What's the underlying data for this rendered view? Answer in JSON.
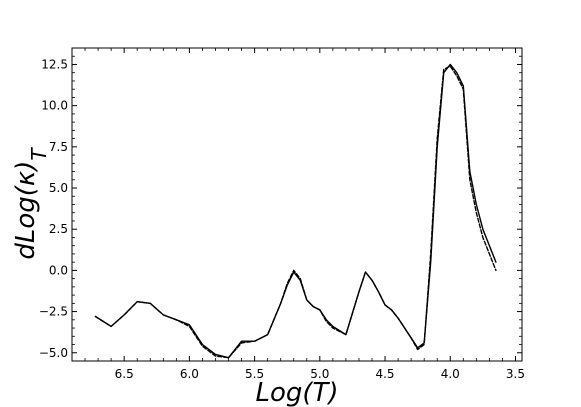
{
  "chart_data": {
    "type": "line",
    "title": "",
    "xlabel": "Log(T)",
    "ylabel": "dLog(κ)_T",
    "xlim": [
      6.9,
      3.45
    ],
    "ylim": [
      -5.5,
      13.5
    ],
    "x_inverted": true,
    "grid": false,
    "x_ticks": [
      6.5,
      6.0,
      5.5,
      5.0,
      4.5,
      4.0,
      3.5
    ],
    "x_tick_labels": [
      "6.5",
      "6.0",
      "5.5",
      "5.0",
      "4.5",
      "4.0",
      "3.5"
    ],
    "y_ticks": [
      -5.0,
      -2.5,
      0.0,
      2.5,
      5.0,
      7.5,
      10.0,
      12.5
    ],
    "y_tick_labels": [
      "−5.0",
      "−2.5",
      "0.0",
      "2.5",
      "5.0",
      "7.5",
      "10.0",
      "12.5"
    ],
    "series": [
      {
        "style": "solid",
        "color": "#000000",
        "x": [
          6.72,
          6.6,
          6.5,
          6.4,
          6.3,
          6.2,
          6.1,
          6.0,
          5.9,
          5.8,
          5.7,
          5.6,
          5.5,
          5.4,
          5.3,
          5.25,
          5.2,
          5.15,
          5.1,
          5.05,
          5.0,
          4.95,
          4.9,
          4.8,
          4.75,
          4.7,
          4.65,
          4.6,
          4.55,
          4.5,
          4.45,
          4.4,
          4.35,
          4.3,
          4.25,
          4.2,
          4.15,
          4.1,
          4.05,
          4.0,
          3.95,
          3.9,
          3.85,
          3.8,
          3.75,
          3.7,
          3.65
        ],
        "y": [
          -2.8,
          -3.4,
          -2.7,
          -1.9,
          -2.0,
          -2.7,
          -3.0,
          -3.3,
          -4.5,
          -5.1,
          -5.3,
          -4.3,
          -4.3,
          -3.9,
          -2.0,
          -0.9,
          -0.1,
          -0.6,
          -1.8,
          -2.2,
          -2.4,
          -3.0,
          -3.4,
          -3.9,
          -2.6,
          -1.3,
          -0.1,
          -0.6,
          -1.3,
          -2.1,
          -2.4,
          -2.9,
          -3.5,
          -4.1,
          -4.7,
          -4.4,
          0.5,
          7.5,
          12.0,
          12.5,
          12.0,
          11.2,
          6.0,
          4.0,
          2.5,
          1.5,
          0.5
        ]
      },
      {
        "style": "dashed",
        "color": "#000000",
        "x": [
          6.72,
          6.6,
          6.5,
          6.4,
          6.3,
          6.2,
          6.1,
          6.0,
          5.9,
          5.8,
          5.7,
          5.6,
          5.5,
          5.4,
          5.3,
          5.25,
          5.2,
          5.15,
          5.1,
          5.05,
          5.0,
          4.95,
          4.9,
          4.8,
          4.75,
          4.7,
          4.65,
          4.6,
          4.55,
          4.5,
          4.45,
          4.4,
          4.35,
          4.3,
          4.25,
          4.2,
          4.15,
          4.1,
          4.05,
          4.0,
          3.95,
          3.9,
          3.85,
          3.8,
          3.75,
          3.7,
          3.65
        ],
        "y": [
          -2.8,
          -3.4,
          -2.7,
          -1.9,
          -2.0,
          -2.7,
          -3.0,
          -3.4,
          -4.6,
          -5.2,
          -5.3,
          -4.4,
          -4.3,
          -3.9,
          -2.0,
          -0.8,
          0.0,
          -0.5,
          -1.8,
          -2.2,
          -2.4,
          -3.1,
          -3.5,
          -3.9,
          -2.6,
          -1.3,
          -0.1,
          -0.6,
          -1.3,
          -2.1,
          -2.4,
          -2.9,
          -3.5,
          -4.1,
          -4.8,
          -4.5,
          1.0,
          8.0,
          12.2,
          12.4,
          11.8,
          11.0,
          5.5,
          3.5,
          2.0,
          1.0,
          0.0
        ]
      }
    ]
  }
}
